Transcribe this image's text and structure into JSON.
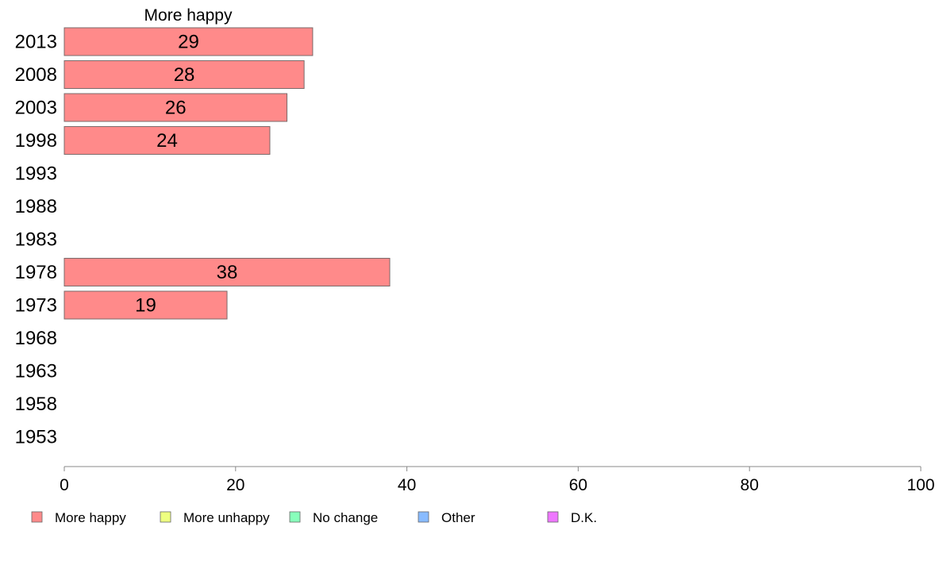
{
  "chart_data": {
    "type": "bar",
    "orientation": "horizontal",
    "title": "More happy",
    "categories": [
      "2013",
      "2008",
      "2003",
      "1998",
      "1993",
      "1988",
      "1983",
      "1978",
      "1973",
      "1968",
      "1963",
      "1958",
      "1953"
    ],
    "series": [
      {
        "name": "More happy",
        "color": "#ff8a8a",
        "values": [
          29,
          28,
          26,
          24,
          null,
          null,
          null,
          38,
          19,
          null,
          null,
          null,
          null
        ],
        "data_labels": [
          "29",
          "28",
          "26",
          "24",
          "",
          "",
          "",
          "38",
          "19",
          "",
          "",
          "",
          ""
        ]
      }
    ],
    "xlim": [
      0,
      100
    ],
    "xticks": [
      "0",
      "20",
      "40",
      "60",
      "80",
      "100"
    ],
    "xlabel": "",
    "ylabel": "",
    "grid": false,
    "legend": {
      "placement": "bottom",
      "items": [
        {
          "label": "More happy",
          "color": "#ff8a8a"
        },
        {
          "label": "More unhappy",
          "color": "#eeff80"
        },
        {
          "label": "No change",
          "color": "#88ffbb"
        },
        {
          "label": "Other",
          "color": "#88bbff"
        },
        {
          "label": "D.K.",
          "color": "#ee77ff"
        }
      ]
    }
  }
}
